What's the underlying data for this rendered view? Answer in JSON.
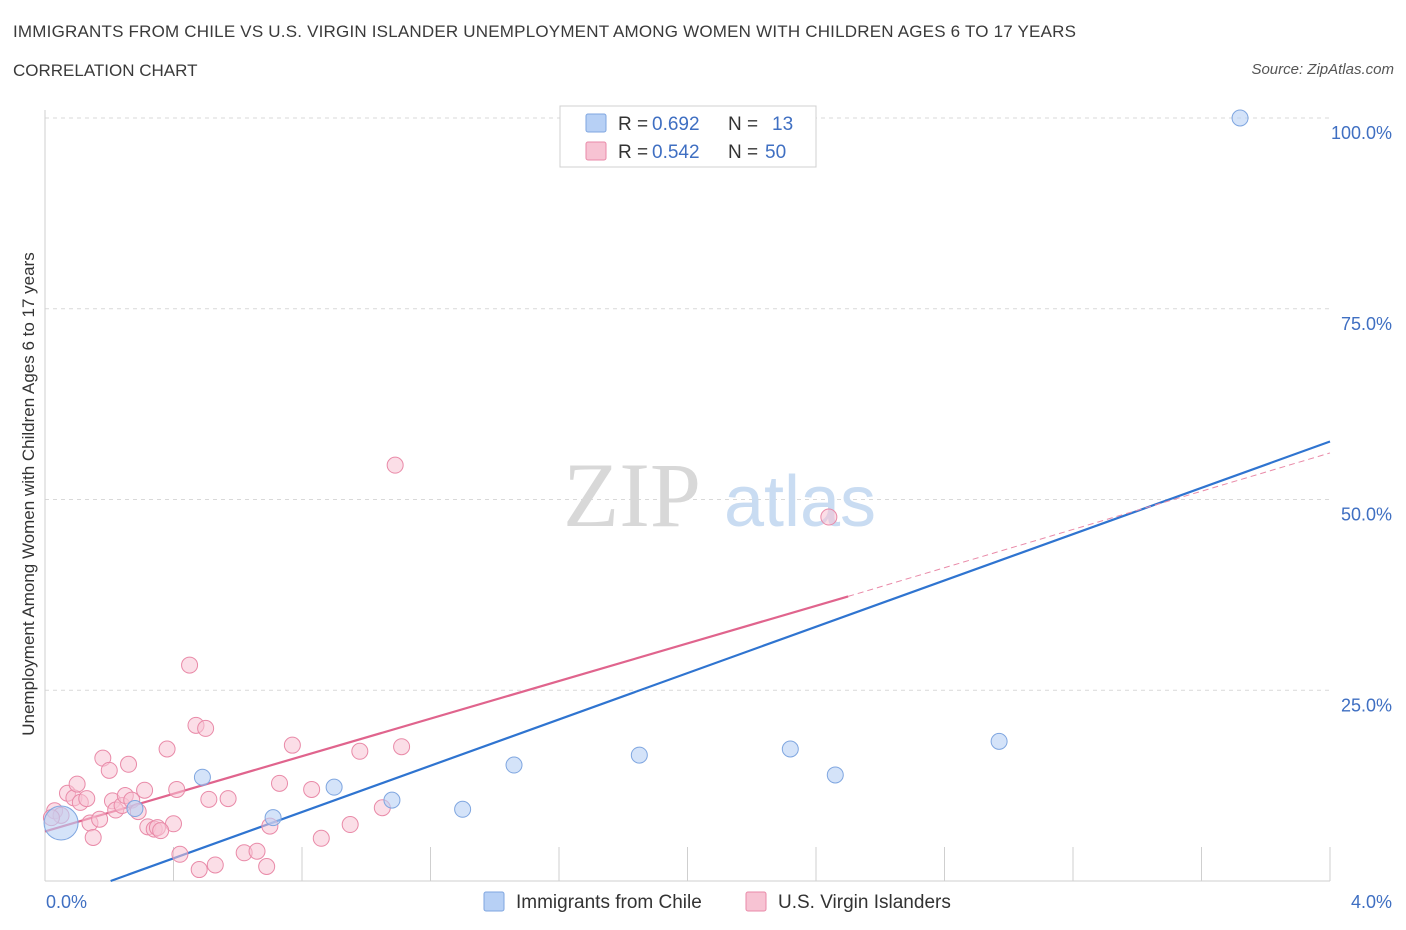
{
  "header": {
    "title": "IMMIGRANTS FROM CHILE VS U.S. VIRGIN ISLANDER UNEMPLOYMENT AMONG WOMEN WITH CHILDREN AGES 6 TO 17 YEARS",
    "subtitle": "CORRELATION CHART",
    "source": "Source: ZipAtlas.com"
  },
  "colors": {
    "blue_fill": "#b7d0f5",
    "blue_stroke": "#7fa6e0",
    "blue_line": "#2f74d0",
    "pink_fill": "#f7c3d3",
    "pink_stroke": "#e98aa8",
    "pink_line": "#e0648d",
    "tick_text": "#3f6fc2",
    "grid": "#d9d9d9"
  },
  "legend": {
    "rows": [
      {
        "r_label": "R = ",
        "r_value": "0.692",
        "n_label": "N = ",
        "n_value": "13"
      },
      {
        "r_label": "R = ",
        "r_value": "0.542",
        "n_label": "N = ",
        "n_value": "50"
      }
    ]
  },
  "watermark": {
    "zip": "ZIP",
    "atlas": "atlas"
  },
  "chart_data": {
    "type": "scatter",
    "title": "IMMIGRANTS FROM CHILE VS U.S. VIRGIN ISLANDER UNEMPLOYMENT AMONG WOMEN WITH CHILDREN AGES 6 TO 17 YEARS",
    "xlabel": "",
    "ylabel": "Unemployment Among Women with Children Ages 6 to 17 years",
    "xlim": [
      0,
      4
    ],
    "ylim": [
      0,
      100
    ],
    "x_tick_labels": [
      "0.0%",
      "4.0%"
    ],
    "y_ticks": [
      25,
      50,
      75,
      100
    ],
    "y_tick_labels": [
      "25.0%",
      "50.0%",
      "75.0%",
      "100.0%"
    ],
    "grid": true,
    "legend_position": "bottom",
    "series": [
      {
        "name": "Immigrants from Chile",
        "color": "#b7d0f5",
        "R": 0.692,
        "N": 13,
        "points": [
          {
            "x": 0.05,
            "y": 7.6,
            "big": true
          },
          {
            "x": 0.28,
            "y": 9.5
          },
          {
            "x": 0.49,
            "y": 13.6
          },
          {
            "x": 0.71,
            "y": 8.3
          },
          {
            "x": 0.9,
            "y": 12.3
          },
          {
            "x": 1.08,
            "y": 10.6
          },
          {
            "x": 1.3,
            "y": 9.4
          },
          {
            "x": 1.46,
            "y": 15.2
          },
          {
            "x": 1.85,
            "y": 16.5
          },
          {
            "x": 2.32,
            "y": 17.3
          },
          {
            "x": 2.46,
            "y": 13.9
          },
          {
            "x": 2.97,
            "y": 18.3
          },
          {
            "x": 3.72,
            "y": 100.0
          }
        ],
        "trend": {
          "x": [
            0.0,
            4.0
          ],
          "y": [
            -3.1,
            57.6
          ]
        }
      },
      {
        "name": "U.S. Virgin Islanders",
        "color": "#f7c3d3",
        "R": 0.542,
        "N": 50,
        "points": [
          {
            "x": 0.03,
            "y": 9.2
          },
          {
            "x": 0.05,
            "y": 8.6
          },
          {
            "x": 0.07,
            "y": 11.5
          },
          {
            "x": 0.09,
            "y": 10.9
          },
          {
            "x": 0.1,
            "y": 12.7
          },
          {
            "x": 0.11,
            "y": 10.3
          },
          {
            "x": 0.13,
            "y": 10.8
          },
          {
            "x": 0.14,
            "y": 7.6
          },
          {
            "x": 0.15,
            "y": 5.7
          },
          {
            "x": 0.17,
            "y": 8.1
          },
          {
            "x": 0.18,
            "y": 16.1
          },
          {
            "x": 0.2,
            "y": 14.5
          },
          {
            "x": 0.21,
            "y": 10.5
          },
          {
            "x": 0.22,
            "y": 9.3
          },
          {
            "x": 0.24,
            "y": 9.9
          },
          {
            "x": 0.25,
            "y": 11.2
          },
          {
            "x": 0.26,
            "y": 15.3
          },
          {
            "x": 0.27,
            "y": 10.6
          },
          {
            "x": 0.29,
            "y": 9.1
          },
          {
            "x": 0.31,
            "y": 11.9
          },
          {
            "x": 0.32,
            "y": 7.1
          },
          {
            "x": 0.34,
            "y": 6.8
          },
          {
            "x": 0.35,
            "y": 7.0
          },
          {
            "x": 0.38,
            "y": 17.3
          },
          {
            "x": 0.4,
            "y": 7.5
          },
          {
            "x": 0.41,
            "y": 12.0
          },
          {
            "x": 0.42,
            "y": 3.5
          },
          {
            "x": 0.45,
            "y": 28.3
          },
          {
            "x": 0.47,
            "y": 20.4
          },
          {
            "x": 0.48,
            "y": 1.5
          },
          {
            "x": 0.5,
            "y": 20.0
          },
          {
            "x": 0.51,
            "y": 10.7
          },
          {
            "x": 0.53,
            "y": 2.1
          },
          {
            "x": 0.57,
            "y": 10.8
          },
          {
            "x": 0.62,
            "y": 3.7
          },
          {
            "x": 0.66,
            "y": 3.9
          },
          {
            "x": 0.69,
            "y": 1.9
          },
          {
            "x": 0.7,
            "y": 7.2
          },
          {
            "x": 0.73,
            "y": 12.8
          },
          {
            "x": 0.77,
            "y": 17.8
          },
          {
            "x": 0.83,
            "y": 12.0
          },
          {
            "x": 0.86,
            "y": 5.6
          },
          {
            "x": 0.95,
            "y": 7.4
          },
          {
            "x": 0.98,
            "y": 17.0
          },
          {
            "x": 1.05,
            "y": 9.6
          },
          {
            "x": 1.09,
            "y": 54.5
          },
          {
            "x": 1.11,
            "y": 17.6
          },
          {
            "x": 2.44,
            "y": 47.7
          },
          {
            "x": 0.02,
            "y": 8.3
          },
          {
            "x": 0.36,
            "y": 6.6
          }
        ],
        "trend": {
          "x": [
            0.0,
            2.5
          ],
          "y": [
            6.5,
            37.3
          ]
        },
        "trend_extension": {
          "x": [
            2.5,
            4.0
          ],
          "y": [
            37.3,
            56.1
          ]
        }
      }
    ]
  },
  "bottom_legend": {
    "items": [
      {
        "label": "Immigrants from Chile"
      },
      {
        "label": "U.S. Virgin Islanders"
      }
    ]
  }
}
